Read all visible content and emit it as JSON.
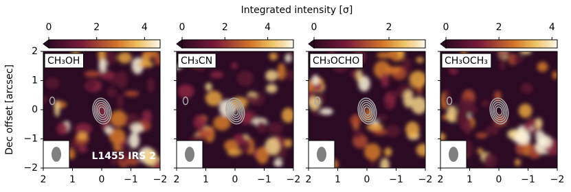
{
  "title": "Integrated intensity [σ]",
  "ylabel": "Dec offset [arcsec]",
  "source": "L1455 IRS 2",
  "chart_data": [
    {
      "type": "image",
      "label": "CH₃OH",
      "clim": [
        0,
        4.65
      ],
      "cticks": [
        0,
        2,
        4
      ],
      "xlim": [
        2,
        -2
      ],
      "ylim": [
        -2,
        2
      ],
      "xticks": [
        2,
        1,
        0,
        {
          "value": -1,
          "label": "−1"
        },
        {
          "value": -2,
          "label": "−2"
        }
      ],
      "yticks": [
        {
          "value": -2,
          "label": "−2"
        },
        {
          "value": -1,
          "label": "−1"
        },
        0,
        1,
        2
      ]
    },
    {
      "type": "image",
      "label": "CH₃CN",
      "clim": [
        0,
        5.2
      ],
      "cticks": [
        0,
        2,
        4
      ],
      "xlim": [
        2,
        -2
      ],
      "ylim": [
        -2,
        2
      ],
      "xticks": [
        2,
        1,
        0,
        {
          "value": -1,
          "label": "−1"
        },
        {
          "value": -2,
          "label": "−2"
        }
      ]
    },
    {
      "type": "image",
      "label": "CH₃OCHO",
      "clim": [
        0,
        2.97
      ],
      "cticks": [
        0,
        2
      ],
      "xlim": [
        2,
        -2
      ],
      "ylim": [
        -2,
        2
      ],
      "xticks": [
        2,
        1,
        0,
        {
          "value": -1,
          "label": "−1"
        },
        {
          "value": -2,
          "label": "−2"
        }
      ]
    },
    {
      "type": "image",
      "label": "CH₃OCH₃",
      "clim": [
        0,
        4.2
      ],
      "cticks": [
        0,
        2,
        4
      ],
      "xlim": [
        2,
        -2
      ],
      "ylim": [
        -2,
        2
      ],
      "xticks": [
        2,
        1,
        0,
        {
          "value": -1,
          "label": "−1"
        },
        {
          "value": -2,
          "label": "−2"
        }
      ]
    }
  ]
}
